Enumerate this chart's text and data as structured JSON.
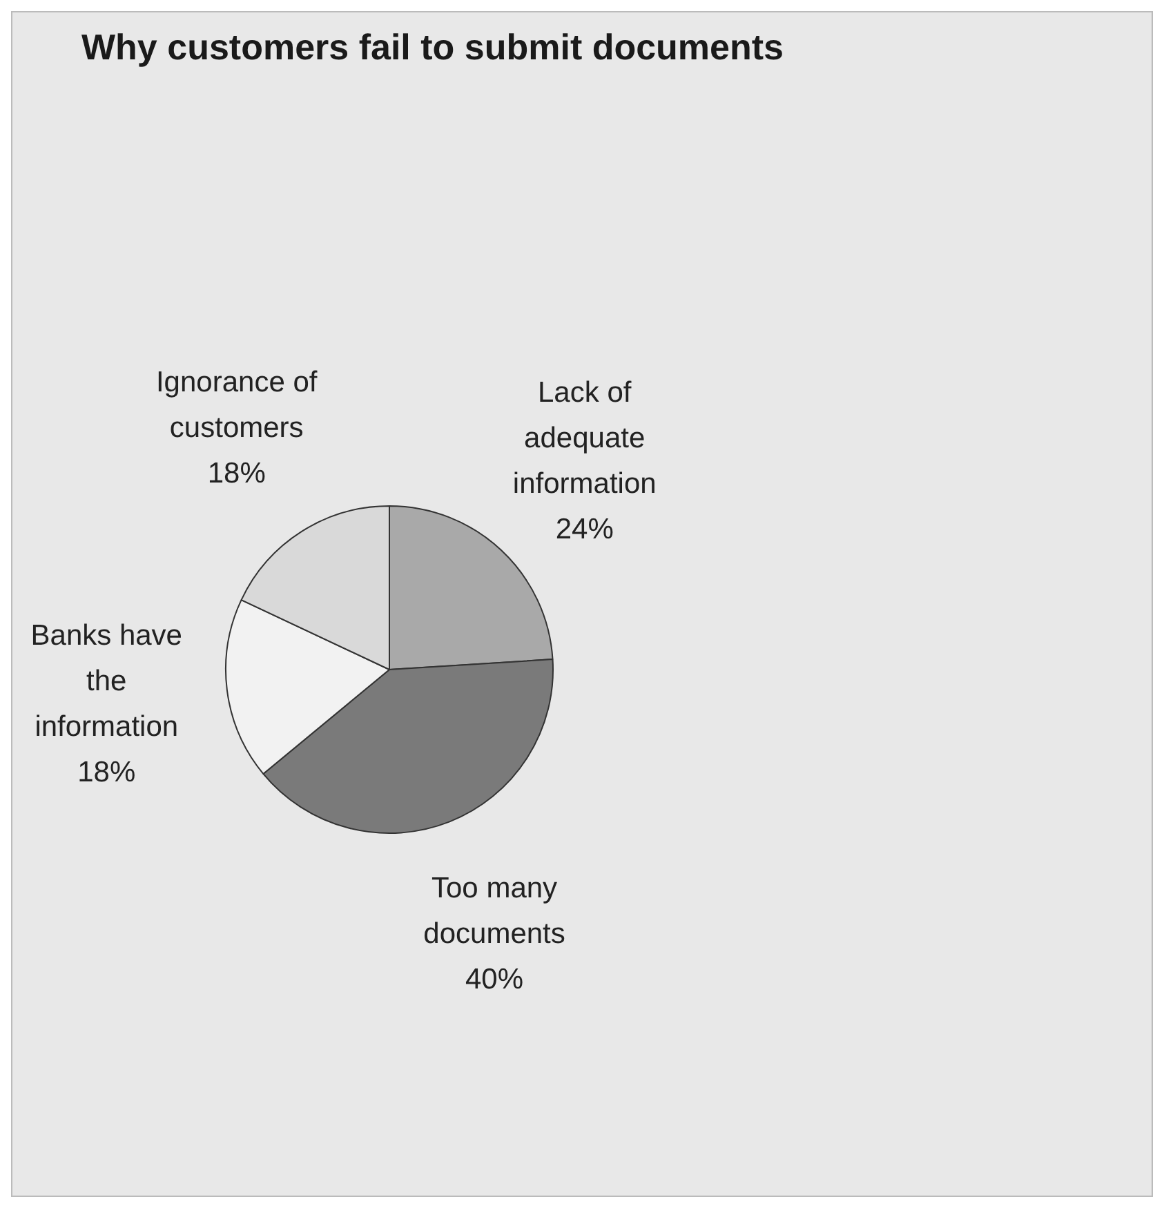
{
  "chart_data": {
    "type": "pie",
    "title": "Why customers fail to submit documents",
    "categories": [
      "Lack of adequate information",
      "Too many documents",
      "Banks have the information",
      "Ignorance of customers"
    ],
    "values": [
      24,
      40,
      18,
      18
    ],
    "colors": [
      "#a9a9a9",
      "#7a7a7a",
      "#f2f2f2",
      "#d9d9d9"
    ],
    "value_labels": [
      "24%",
      "40%",
      "18%",
      "18%"
    ],
    "legend": false
  }
}
